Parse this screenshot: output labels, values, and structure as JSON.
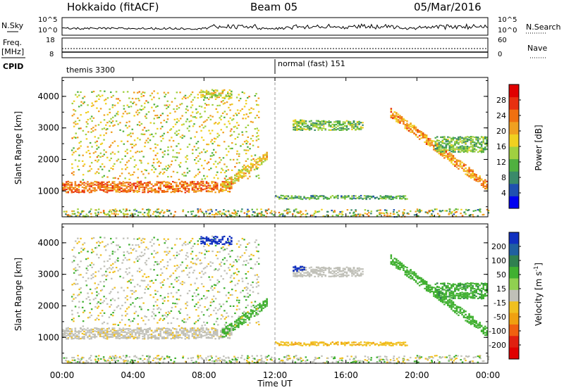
{
  "header": {
    "station": "Hokkaido (fitACF)",
    "beam": "Beam 05",
    "date": "05/Mar/2016"
  },
  "summary": {
    "nsky_label": "N.Sky",
    "nsearch_label": "N.Search",
    "nsky_ticks": [
      "10^5",
      "10^0"
    ],
    "nsearch_ticks": [
      "10^5",
      "10^0"
    ],
    "freq_label": "Freq.",
    "freq_unit": "[MHz]",
    "freq_ticks": [
      "18",
      "8"
    ],
    "nave_label": "Nave",
    "nave_ticks": [
      "60",
      "0"
    ],
    "cpid_label": "CPID",
    "cpid_segments": [
      {
        "name": "themis 3300",
        "start_hour": 0,
        "end_hour": 12
      },
      {
        "name": "normal (fast) 151",
        "start_hour": 12,
        "end_hour": 24
      }
    ]
  },
  "xaxis": {
    "label": "Time UT",
    "ticks": [
      "00:00",
      "04:00",
      "08:00",
      "12:00",
      "16:00",
      "20:00",
      "00:00"
    ],
    "range_hours": [
      0,
      24
    ]
  },
  "power_panel": {
    "ylabel": "Slant Range [km]",
    "yticks": [
      "1000",
      "2000",
      "3000",
      "4000"
    ],
    "colorbar_label": "Power [dB]",
    "colorbar_ticks": [
      "4",
      "8",
      "12",
      "16",
      "20",
      "24",
      "28"
    ],
    "colors": [
      "#0000f0",
      "#2050b0",
      "#3a8a6a",
      "#50b040",
      "#a0d040",
      "#f0d020",
      "#f0a020",
      "#f07010",
      "#e83010",
      "#e00000"
    ]
  },
  "velocity_panel": {
    "ylabel": "Slant Range [km]",
    "yticks": [
      "1000",
      "2000",
      "3000",
      "4000"
    ],
    "colorbar_label": "Velocity [m s",
    "colorbar_sup": "-1",
    "colorbar_label_end": "]",
    "colorbar_ticks": [
      "200",
      "100",
      "50",
      "15",
      "-15",
      "-50",
      "-100",
      "-200"
    ],
    "colors": [
      "#1030c0",
      "#2060a0",
      "#308050",
      "#40b030",
      "#90d050",
      "#c0c0b8",
      "#f0c020",
      "#f0a010",
      "#f06010",
      "#e02010",
      "#e00000"
    ]
  },
  "chart_data": {
    "type": "heatmap",
    "xlabel": "Time UT",
    "ylabel": "Slant Range [km]",
    "xlim": [
      0,
      24
    ],
    "ylim": [
      180,
      4600
    ],
    "features": [
      {
        "name": "near-range band",
        "t_start": 0,
        "t_end": 9.5,
        "range_center": 1150,
        "range_width": 350,
        "power_db": 28,
        "velocity": -5
      },
      {
        "name": "near-range band rising",
        "t_start": 9.0,
        "t_end": 11.5,
        "range_start": 1150,
        "range_end": 2100,
        "power_db": 22,
        "velocity": 30
      },
      {
        "name": "multi-hop streaks",
        "t_start": 0.5,
        "t_end": 11,
        "range_start": 1300,
        "range_end": 4200,
        "power_db": 16,
        "velocity": 0
      },
      {
        "name": "near-range band afternoon",
        "t_start": 12.0,
        "t_end": 19.5,
        "range_center": 820,
        "range_width": 120,
        "power_db": 14,
        "velocity": -40
      },
      {
        "name": "evening band descending",
        "t_start": 18.5,
        "t_end": 24,
        "range_start": 3500,
        "range_end": 1150,
        "power_db": 26,
        "velocity": 30
      },
      {
        "name": "evening far range",
        "t_start": 21,
        "t_end": 24,
        "range_center": 2500,
        "range_width": 500,
        "power_db": 16,
        "velocity": 40
      },
      {
        "name": "mid-day far patch",
        "t_start": 13,
        "t_end": 17,
        "range_center": 3100,
        "range_width": 300,
        "power_db": 16,
        "velocity": 0
      },
      {
        "name": "high velocity patch",
        "t_start": 7.8,
        "t_end": 9.5,
        "range_center": 4100,
        "range_width": 250,
        "power_db": 20,
        "velocity": 220
      },
      {
        "name": "high velocity patch 2",
        "t_start": 13.0,
        "t_end": 13.6,
        "range_center": 3200,
        "range_width": 150,
        "power_db": 18,
        "velocity": 220
      }
    ]
  }
}
